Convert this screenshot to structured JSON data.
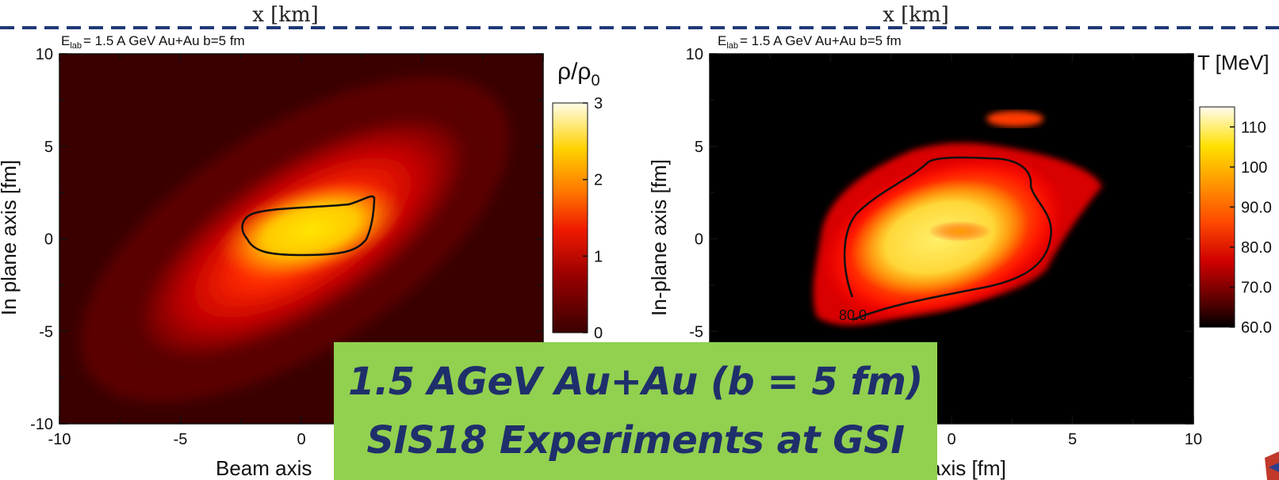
{
  "header": {
    "left_xlabel": "x [km]",
    "right_xlabel": "x [km]"
  },
  "colors": {
    "dashed_line": "#1f3a78",
    "banner_bg": "#92d050",
    "banner_text": "#1f2f6b",
    "contour": "#111111"
  },
  "banner": {
    "line1": "1.5 AGeV Au+Au (b = 5 fm)",
    "line2": "SIS18 Experiments at GSI"
  },
  "chart_data": [
    {
      "type": "heatmap",
      "title": "E_lab = 1.5 A GeV Au+Au b=5 fm",
      "title_main": "E",
      "title_sub": "lab",
      "title_rest": "= 1.5 A GeV Au+Au b=5 fm",
      "xlabel": "Beam axis [fm]",
      "xlabel_visible": "Beam axis",
      "ylabel": "In plane axis [fm]",
      "xlim": [
        -10,
        10
      ],
      "ylim": [
        -10,
        10
      ],
      "xticks": [
        -10,
        -5,
        0,
        5,
        10
      ],
      "xtick_labels_visible": [
        "-10",
        "-5",
        "0"
      ],
      "yticks": [
        -10,
        -5,
        0,
        5,
        10
      ],
      "ytick_labels": [
        "-10",
        "-5",
        "0",
        "5",
        "10"
      ],
      "colorbar": {
        "label": "ρ/ρ",
        "label_sub": "0",
        "min": 0,
        "max": 3,
        "ticks": [
          "0",
          "1",
          "2",
          "3"
        ],
        "colormap": "hot"
      },
      "blob": {
        "center": [
          0.6,
          0.6
        ],
        "peak": 2.4,
        "elongation_angle_deg": 33
      },
      "contour": {
        "value": 2.0,
        "label": ""
      }
    },
    {
      "type": "heatmap",
      "title": "E_lab = 1.5 A GeV Au+Au b=5 fm",
      "title_main": "E",
      "title_sub": "lab",
      "title_rest": "= 1.5 A GeV Au+Au b=5 fm",
      "xlabel": "Beam axis [fm]",
      "xlabel_visible": "axis [fm]",
      "ylabel": "In-plane axis [fm]",
      "xlim": [
        -10,
        10
      ],
      "ylim": [
        -10,
        10
      ],
      "xticks": [
        -10,
        -5,
        0,
        5,
        10
      ],
      "xtick_labels_visible": [
        "0",
        "5",
        "10"
      ],
      "yticks": [
        -10,
        -5,
        0,
        5,
        10
      ],
      "ytick_labels_visible": [
        "-5",
        "0",
        "5",
        "10"
      ],
      "colorbar": {
        "label": "T [MeV]",
        "min": 60,
        "max": 115,
        "ticks": [
          "60.0",
          "70.0",
          "80.0",
          "90.0",
          "100",
          "110"
        ],
        "colormap": "hot"
      },
      "blob": {
        "center": [
          0.5,
          0.2
        ],
        "peak": 102
      },
      "contour": {
        "value": 80.0,
        "label": "80.0"
      }
    }
  ]
}
